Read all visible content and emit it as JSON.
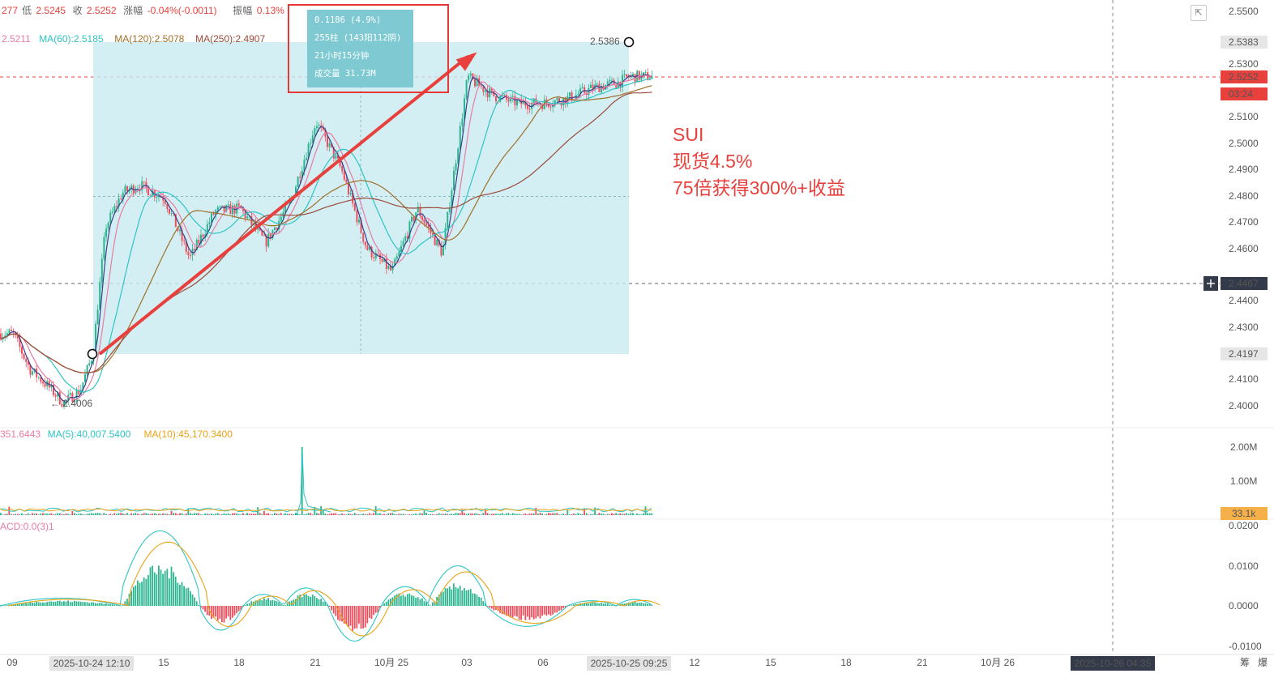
{
  "header": {
    "ohlc_line": [
      {
        "text": "277",
        "color": "#e8413d"
      },
      {
        "text": "低",
        "color": "#666666"
      },
      {
        "text": "2.5245",
        "color": "#e8413d"
      },
      {
        "text": "收",
        "color": "#666666"
      },
      {
        "text": "2.5252",
        "color": "#e8413d"
      },
      {
        "text": "涨幅",
        "color": "#666666"
      },
      {
        "text": "-0.04%(-0.0011)",
        "color": "#e8413d"
      },
      {
        "text": "振幅",
        "color": "#666666"
      },
      {
        "text": "0.13%",
        "color": "#e8413d"
      }
    ],
    "ma_line": [
      {
        "text": "2.5211",
        "color": "#e87ba5"
      },
      {
        "text": "MA(60):2.5185",
        "color": "#2ec4c4"
      },
      {
        "text": "MA(120):2.5078",
        "color": "#a0702a"
      },
      {
        "text": "MA(250):2.4907",
        "color": "#9a4a3a"
      }
    ]
  },
  "measure_box": {
    "lines": [
      "0.1186 (4.9%)",
      "255柱 (143阳112阴)",
      "21小时15分钟",
      "成交量 31.73M"
    ]
  },
  "annotation": {
    "lines": [
      "SUI",
      "现货4.5%",
      "75倍获得300%+收益"
    ],
    "color": "#e8413d"
  },
  "markers": {
    "high_label": "2.5386",
    "low_label": "← 2.4006"
  },
  "price_axis": {
    "ticks": [
      "2.5500",
      "2.5300",
      "2.5100",
      "2.5000",
      "2.4900",
      "2.4800",
      "2.4700",
      "2.4600",
      "2.4400",
      "2.4300",
      "2.4100",
      "2.4000"
    ],
    "tags": [
      {
        "label": "2.5383",
        "bg": "#e6e6e6",
        "fg": "#222222"
      },
      {
        "label": "2.5252",
        "bg": "#e8413d",
        "fg": "#ffffff"
      },
      {
        "label": "03:24",
        "bg": "#e8413d",
        "fg": "#ffffff"
      },
      {
        "label": "2.4467",
        "bg": "#333b4a",
        "fg": "#ffffff"
      },
      {
        "label": "2.4197",
        "bg": "#e6e6e6",
        "fg": "#222222"
      }
    ],
    "plus_icon": "plus-icon"
  },
  "volume": {
    "header": [
      {
        "text": "351.6443",
        "color": "#e87ba5"
      },
      {
        "text": "MA(5):40,007.5400",
        "color": "#2ec4c4"
      },
      {
        "text": "MA(10):45,170.3400",
        "color": "#e8a317"
      }
    ],
    "ticks": [
      "2.00M",
      "1.00M"
    ],
    "tag": {
      "label": "33.1k",
      "bg": "#f5b04a",
      "fg": "#ffffff"
    }
  },
  "macd": {
    "header": "ACD:0.0(3)1",
    "ticks": [
      "0.0200",
      "0.0100",
      "0.0000",
      "-0.0100"
    ]
  },
  "time_axis": {
    "labels": [
      "09",
      "15",
      "18",
      "21",
      "10月 25",
      "03",
      "06",
      "12",
      "15",
      "18",
      "21",
      "10月 26"
    ],
    "tags": [
      "2025-10-24 12:10",
      "2025-10-25 09:25",
      "2025-10-26 04:35"
    ],
    "corner": [
      "筹",
      "爆"
    ]
  },
  "chart_data": {
    "type": "candlestick",
    "title": "",
    "xlabel": "",
    "ylabel": "",
    "ylim": [
      2.395,
      2.552
    ],
    "x_range": [
      "2025-10-24 09:00",
      "2025-10-26 06:00"
    ],
    "last_price": 2.5252,
    "period_high": 2.5386,
    "period_low": 2.4006,
    "measure_range": {
      "from": 2.4197,
      "to": 2.5383,
      "change": 0.1186,
      "change_pct": 4.9,
      "bars": 255,
      "up_bars": 143,
      "down_bars": 112
    },
    "crosshair_price": 2.4467,
    "price_path": [
      [
        "2025-10-24 09:00",
        2.4275
      ],
      [
        "2025-10-24 09:40",
        2.414
      ],
      [
        "2025-10-24 10:20",
        2.408
      ],
      [
        "2025-10-24 11:00",
        2.401
      ],
      [
        "2025-10-24 11:40",
        2.406
      ],
      [
        "2025-10-24 12:10",
        2.42
      ],
      [
        "2025-10-24 12:40",
        2.468
      ],
      [
        "2025-10-24 13:20",
        2.481
      ],
      [
        "2025-10-24 14:00",
        2.484
      ],
      [
        "2025-10-24 15:00",
        2.479
      ],
      [
        "2025-10-24 16:00",
        2.456
      ],
      [
        "2025-10-24 17:00",
        2.474
      ],
      [
        "2025-10-24 18:00",
        2.475
      ],
      [
        "2025-10-24 19:00",
        2.462
      ],
      [
        "2025-10-24 20:00",
        2.478
      ],
      [
        "2025-10-24 21:00",
        2.508
      ],
      [
        "2025-10-24 22:00",
        2.49
      ],
      [
        "2025-10-24 23:00",
        2.46
      ],
      [
        "2025-10-25 00:00",
        2.451
      ],
      [
        "2025-10-25 01:00",
        2.475
      ],
      [
        "2025-10-25 02:00",
        2.458
      ],
      [
        "2025-10-25 03:00",
        2.525
      ],
      [
        "2025-10-25 04:00",
        2.518
      ],
      [
        "2025-10-25 05:00",
        2.515
      ],
      [
        "2025-10-25 06:00",
        2.515
      ],
      [
        "2025-10-25 07:00",
        2.517
      ],
      [
        "2025-10-25 08:00",
        2.521
      ],
      [
        "2025-10-25 09:00",
        2.523
      ],
      [
        "2025-10-25 09:25",
        2.5252
      ]
    ],
    "series": [
      {
        "name": "MA(60)",
        "value": 2.5185,
        "color": "#2ec4c4"
      },
      {
        "name": "MA(120)",
        "value": 2.5078,
        "color": "#a0702a"
      },
      {
        "name": "MA(250)",
        "value": 2.4907,
        "color": "#9a4a3a"
      }
    ],
    "volume_ma5": 40007.54,
    "volume_ma10": 45170.34,
    "volume_last": 33100,
    "volume_ylim": [
      0,
      2400000
    ],
    "volume_spike": 2000000,
    "macd_ylim": [
      -0.0112,
      0.0215
    ],
    "macd_params": "ACD:0.0(3)1",
    "macd_hist_peaks": [
      0.0092,
      -0.0038,
      0.0028,
      -0.0055,
      0.005,
      -0.0032,
      0.0033
    ],
    "trend_arrow": {
      "from": [
        "2025-10-24 12:40",
        2.42
      ],
      "to": [
        "2025-10-25 03:30",
        2.5345
      ],
      "color": "#e8413d"
    }
  }
}
